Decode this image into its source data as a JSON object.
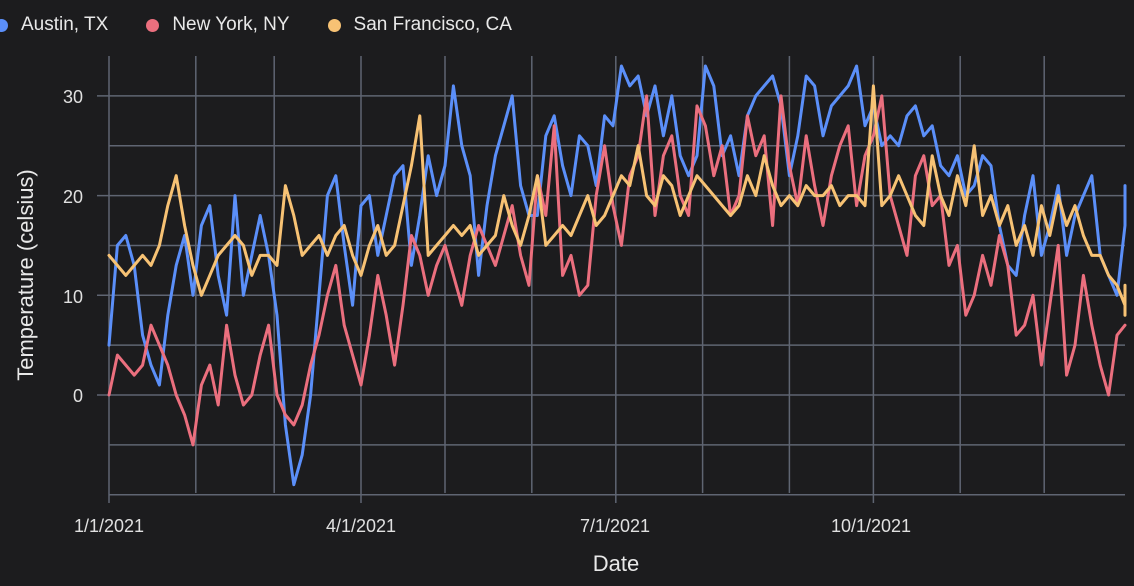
{
  "legend": {
    "items": [
      {
        "label": "Austin, TX",
        "color": "#5b8ff9"
      },
      {
        "label": "New York, NY",
        "color": "#eb6f7e"
      },
      {
        "label": "San Francisco, CA",
        "color": "#f7c274"
      }
    ]
  },
  "axes": {
    "xlabel": "Date",
    "ylabel": "Temperature (celsius)",
    "x_ticks": [
      "1/1/2021",
      "4/1/2021",
      "7/1/2021",
      "10/1/2021"
    ],
    "y_ticks": [
      "30",
      "20",
      "10",
      "0"
    ]
  },
  "chart_data": {
    "type": "line",
    "title": "",
    "xlabel": "Date",
    "ylabel": "Temperature (celsius)",
    "ylim": [
      -10,
      34
    ],
    "xlim": [
      "1/1/2021",
      "12/30/2021"
    ],
    "grid": true,
    "legend_position": "top-left",
    "x_tick_labels": [
      "1/1/2021",
      "4/1/2021",
      "7/1/2021",
      "10/1/2021"
    ],
    "y_tick_labels": [
      0,
      10,
      20,
      30
    ],
    "x_step_days": 3,
    "x_start": "1/1/2021",
    "series": [
      {
        "name": "Austin, TX",
        "color": "#5b8ff9",
        "values": [
          5,
          15,
          16,
          13,
          6,
          3,
          1,
          8,
          13,
          16,
          10,
          17,
          19,
          12,
          8,
          20,
          10,
          14,
          18,
          14,
          8,
          -3,
          -9,
          -6,
          0,
          10,
          20,
          22,
          15,
          9,
          19,
          20,
          14,
          18,
          22,
          23,
          13,
          18,
          24,
          20,
          23,
          31,
          25,
          22,
          12,
          19,
          24,
          27,
          30,
          21,
          18,
          18,
          26,
          28,
          23,
          20,
          26,
          25,
          21,
          28,
          27,
          33,
          31,
          32,
          28,
          31,
          26,
          30,
          24,
          22,
          24,
          33,
          31,
          24,
          26,
          22,
          28,
          30,
          31,
          32,
          29,
          22,
          26,
          32,
          31,
          26,
          29,
          30,
          31,
          33,
          27,
          29,
          25,
          26,
          25,
          28,
          29,
          26,
          27,
          23,
          22,
          24,
          20,
          21,
          24,
          23,
          17,
          13,
          12,
          18,
          22,
          14,
          17,
          21,
          14,
          18,
          20,
          22,
          14,
          12,
          10,
          17,
          19,
          21
        ]
      },
      {
        "name": "New York, NY",
        "color": "#eb6f7e",
        "values": [
          0,
          4,
          3,
          2,
          3,
          7,
          5,
          3,
          0,
          -2,
          -5,
          1,
          3,
          -1,
          7,
          2,
          -1,
          0,
          4,
          7,
          0,
          -2,
          -3,
          -1,
          3,
          6,
          10,
          13,
          7,
          4,
          1,
          6,
          12,
          8,
          3,
          9,
          16,
          14,
          10,
          13,
          15,
          12,
          9,
          14,
          17,
          15,
          13,
          16,
          19,
          14,
          11,
          22,
          18,
          27,
          12,
          14,
          10,
          11,
          20,
          25,
          19,
          15,
          22,
          24,
          30,
          18,
          24,
          26,
          20,
          18,
          29,
          27,
          22,
          25,
          18,
          20,
          28,
          24,
          26,
          17,
          30,
          23,
          19,
          26,
          21,
          17,
          22,
          25,
          27,
          19,
          24,
          26,
          30,
          20,
          17,
          14,
          22,
          24,
          19,
          20,
          13,
          15,
          8,
          10,
          14,
          11,
          16,
          13,
          6,
          7,
          10,
          3,
          9,
          15,
          2,
          5,
          12,
          7,
          3,
          0,
          6,
          7
        ]
      },
      {
        "name": "San Francisco, CA",
        "color": "#f7c274",
        "values": [
          14,
          13,
          12,
          13,
          14,
          13,
          15,
          19,
          22,
          17,
          13,
          10,
          12,
          14,
          15,
          16,
          15,
          12,
          14,
          14,
          13,
          21,
          18,
          14,
          15,
          16,
          14,
          16,
          17,
          14,
          12,
          15,
          17,
          14,
          15,
          19,
          23,
          28,
          14,
          15,
          16,
          17,
          16,
          17,
          14,
          15,
          16,
          20,
          17,
          15,
          18,
          22,
          15,
          16,
          17,
          16,
          18,
          20,
          17,
          18,
          20,
          22,
          21,
          25,
          20,
          19,
          22,
          21,
          18,
          20,
          22,
          21,
          20,
          19,
          18,
          19,
          22,
          20,
          24,
          21,
          19,
          20,
          19,
          21,
          20,
          20,
          21,
          19,
          20,
          20,
          19,
          31,
          19,
          20,
          22,
          20,
          18,
          17,
          24,
          20,
          18,
          22,
          19,
          25,
          18,
          20,
          17,
          19,
          15,
          17,
          14,
          19,
          16,
          20,
          17,
          19,
          16,
          14,
          14,
          12,
          11,
          9,
          8,
          11
        ]
      }
    ]
  }
}
